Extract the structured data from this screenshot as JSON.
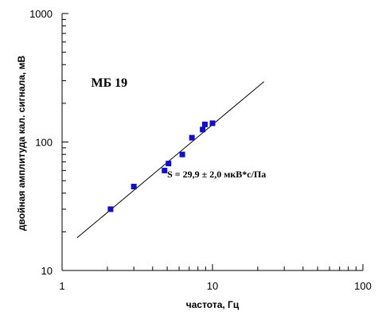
{
  "chart_data": {
    "type": "scatter",
    "x_scale": "log",
    "y_scale": "log",
    "xlabel": "частота, Гц",
    "ylabel": "двойная амплитуда кал. сигнала, мВ",
    "xlim": [
      1,
      100
    ],
    "ylim": [
      10,
      1000
    ],
    "x_ticks": [
      {
        "value": 1,
        "label": "1"
      },
      {
        "value": 10,
        "label": "10"
      },
      {
        "value": 100,
        "label": "100"
      }
    ],
    "y_ticks": [
      {
        "value": 10,
        "label": "10"
      },
      {
        "value": 100,
        "label": "100"
      },
      {
        "value": 1000,
        "label": "1000"
      }
    ],
    "grid": false,
    "marker_color": "#1010cc",
    "line_color": "#000000",
    "points": [
      {
        "x": 2.1,
        "y": 30
      },
      {
        "x": 3.0,
        "y": 45
      },
      {
        "x": 4.8,
        "y": 60
      },
      {
        "x": 5.1,
        "y": 68
      },
      {
        "x": 6.3,
        "y": 80
      },
      {
        "x": 7.3,
        "y": 108
      },
      {
        "x": 8.6,
        "y": 125
      },
      {
        "x": 8.9,
        "y": 137
      },
      {
        "x": 10.0,
        "y": 140
      }
    ],
    "fit_line": {
      "x": [
        1.26,
        22.0
      ],
      "y": [
        18.0,
        295
      ]
    },
    "annotations": [
      {
        "id": "series-label",
        "text": "МБ 19",
        "x": 1.56,
        "y": 270,
        "style": "title"
      },
      {
        "id": "sensitivity",
        "text": "S = 29,9 ± 2,0 мкВ*с/Па",
        "x": 5.0,
        "y": 53,
        "style": "eq"
      }
    ]
  }
}
